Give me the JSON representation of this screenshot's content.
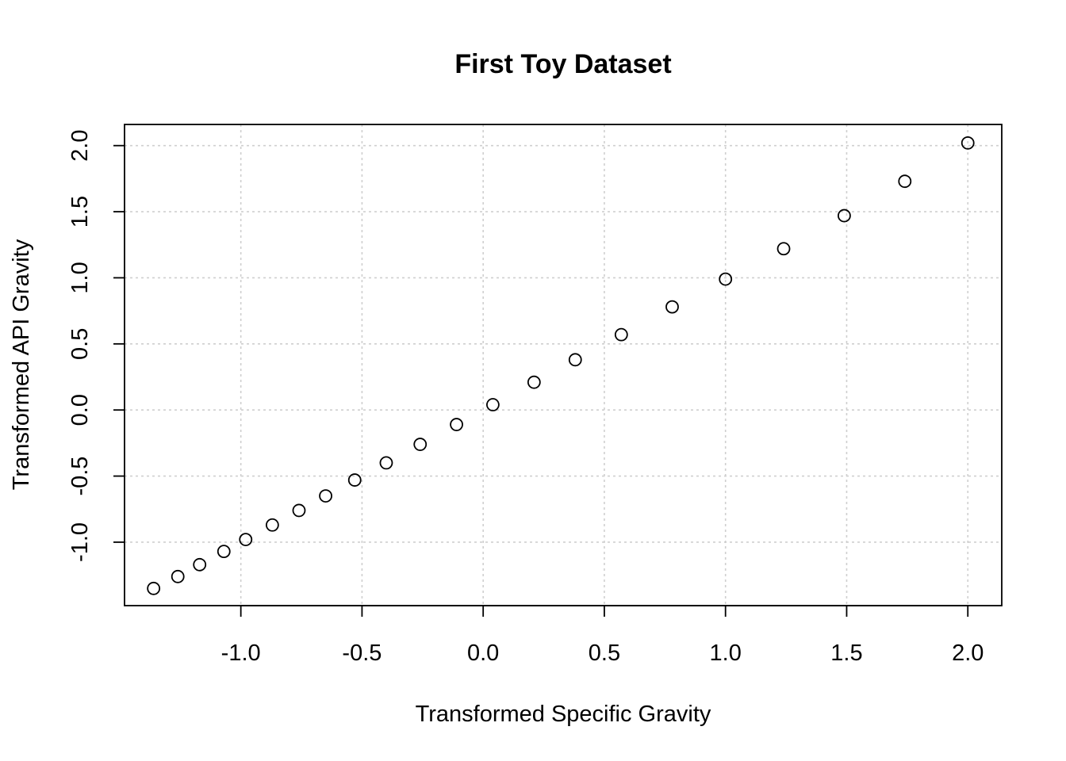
{
  "chart_data": {
    "type": "scatter",
    "title": "First Toy Dataset",
    "xlabel": "Transformed Specific Gravity",
    "ylabel": "Transformed API Gravity",
    "xlim": [
      -1.48,
      2.14
    ],
    "ylim": [
      -1.48,
      2.16
    ],
    "x_ticks": [
      -1.0,
      -0.5,
      0.0,
      0.5,
      1.0,
      1.5,
      2.0
    ],
    "x_tick_labels": [
      "-1.0",
      "-0.5",
      "0.0",
      "0.5",
      "1.0",
      "1.5",
      "2.0"
    ],
    "y_ticks": [
      -1.0,
      -0.5,
      0.0,
      0.5,
      1.0,
      1.5,
      2.0
    ],
    "y_tick_labels": [
      "-1.0",
      "-0.5",
      "0.0",
      "0.5",
      "1.0",
      "1.5",
      "2.0"
    ],
    "grid": true,
    "marker": "open-circle",
    "points": [
      {
        "x": -1.36,
        "y": -1.35
      },
      {
        "x": -1.26,
        "y": -1.26
      },
      {
        "x": -1.17,
        "y": -1.17
      },
      {
        "x": -1.07,
        "y": -1.07
      },
      {
        "x": -0.98,
        "y": -0.98
      },
      {
        "x": -0.87,
        "y": -0.87
      },
      {
        "x": -0.76,
        "y": -0.76
      },
      {
        "x": -0.65,
        "y": -0.65
      },
      {
        "x": -0.53,
        "y": -0.53
      },
      {
        "x": -0.4,
        "y": -0.4
      },
      {
        "x": -0.26,
        "y": -0.26
      },
      {
        "x": -0.11,
        "y": -0.11
      },
      {
        "x": 0.04,
        "y": 0.04
      },
      {
        "x": 0.21,
        "y": 0.21
      },
      {
        "x": 0.38,
        "y": 0.38
      },
      {
        "x": 0.57,
        "y": 0.57
      },
      {
        "x": 0.78,
        "y": 0.78
      },
      {
        "x": 1.0,
        "y": 0.99
      },
      {
        "x": 1.24,
        "y": 1.22
      },
      {
        "x": 1.49,
        "y": 1.47
      },
      {
        "x": 1.74,
        "y": 1.73
      },
      {
        "x": 2.0,
        "y": 2.02
      }
    ]
  }
}
